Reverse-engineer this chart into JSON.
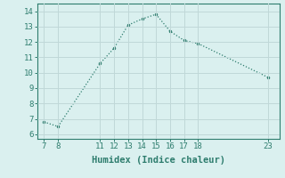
{
  "x": [
    7,
    8,
    11,
    12,
    13,
    14,
    15,
    16,
    17,
    18,
    23
  ],
  "y": [
    6.8,
    6.5,
    10.6,
    11.6,
    13.1,
    13.5,
    13.8,
    12.7,
    12.1,
    11.9,
    9.7
  ],
  "line_color": "#2e7d6e",
  "marker": "o",
  "marker_size": 2.0,
  "bg_color": "#daf0ef",
  "grid_color": "#c0d8d8",
  "xlabel": "Humidex (Indice chaleur)",
  "xticks": [
    7,
    8,
    11,
    12,
    13,
    14,
    15,
    16,
    17,
    18,
    23
  ],
  "yticks": [
    6,
    7,
    8,
    9,
    10,
    11,
    12,
    13,
    14
  ],
  "xlim": [
    6.5,
    23.8
  ],
  "ylim": [
    5.7,
    14.5
  ],
  "xlabel_fontsize": 7.5,
  "tick_fontsize": 6.5
}
